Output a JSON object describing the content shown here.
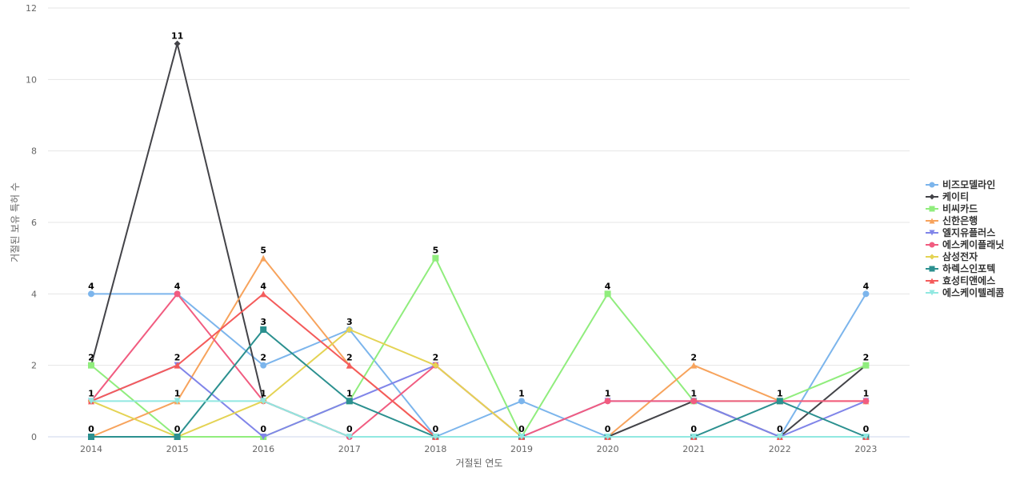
{
  "chart_data": {
    "type": "line",
    "xlabel": "거절된 연도",
    "ylabel": "거절된 보유 특허 수",
    "categories": [
      "2014",
      "2015",
      "2016",
      "2017",
      "2018",
      "2019",
      "2020",
      "2021",
      "2022",
      "2023"
    ],
    "ylim": [
      0,
      12
    ],
    "yticks": [
      0,
      2,
      4,
      6,
      8,
      10,
      12
    ],
    "grid": true,
    "legend_position": "right",
    "series": [
      {
        "name": "비즈모델라인",
        "color": "#7cb5ec",
        "marker": "circle",
        "values": [
          4,
          4,
          2,
          3,
          0,
          1,
          0,
          0,
          0,
          4
        ]
      },
      {
        "name": "케이티",
        "color": "#434348",
        "marker": "diamond",
        "values": [
          2,
          11,
          1,
          0,
          0,
          0,
          0,
          1,
          0,
          2
        ]
      },
      {
        "name": "비씨카드",
        "color": "#90ed7d",
        "marker": "square",
        "values": [
          2,
          0,
          0,
          1,
          5,
          0,
          4,
          1,
          1,
          2
        ]
      },
      {
        "name": "신한은행",
        "color": "#f7a35c",
        "marker": "triangle",
        "values": [
          0,
          1,
          5,
          2,
          0,
          0,
          0,
          2,
          1,
          1
        ]
      },
      {
        "name": "엘지유플러스",
        "color": "#8085e9",
        "marker": "triangle-down",
        "values": [
          1,
          2,
          0,
          1,
          2,
          0,
          1,
          1,
          0,
          1
        ]
      },
      {
        "name": "에스케이플래닛",
        "color": "#f15c80",
        "marker": "circle",
        "values": [
          1,
          4,
          1,
          0,
          2,
          0,
          1,
          1,
          1,
          1
        ]
      },
      {
        "name": "삼성전자",
        "color": "#e4d354",
        "marker": "diamond",
        "values": [
          1,
          0,
          1,
          3,
          2,
          0,
          0,
          0,
          0,
          0
        ]
      },
      {
        "name": "하렉스인포텍",
        "color": "#2b908f",
        "marker": "square",
        "values": [
          0,
          0,
          3,
          1,
          0,
          0,
          0,
          0,
          1,
          0
        ]
      },
      {
        "name": "효성티앤에스",
        "color": "#f45b5b",
        "marker": "triangle",
        "values": [
          1,
          2,
          4,
          2,
          0,
          0,
          0,
          0,
          0,
          0
        ]
      },
      {
        "name": "에스케이텔레콤",
        "color": "#91e8e1",
        "marker": "triangle-down",
        "values": [
          1,
          1,
          1,
          0,
          0,
          0,
          0,
          0,
          0,
          0
        ]
      }
    ],
    "data_labels": [
      {
        "x": "2014",
        "value": 4
      },
      {
        "x": "2014",
        "value": 2
      },
      {
        "x": "2014",
        "value": 1
      },
      {
        "x": "2014",
        "value": 0
      },
      {
        "x": "2015",
        "value": 11
      },
      {
        "x": "2015",
        "value": 4
      },
      {
        "x": "2015",
        "value": 2
      },
      {
        "x": "2015",
        "value": 1
      },
      {
        "x": "2015",
        "value": 0
      },
      {
        "x": "2016",
        "value": 5
      },
      {
        "x": "2016",
        "value": 4
      },
      {
        "x": "2016",
        "value": 3
      },
      {
        "x": "2016",
        "value": 2
      },
      {
        "x": "2016",
        "value": 1
      },
      {
        "x": "2016",
        "value": 0
      },
      {
        "x": "2017",
        "value": 3
      },
      {
        "x": "2017",
        "value": 2
      },
      {
        "x": "2017",
        "value": 1
      },
      {
        "x": "2017",
        "value": 0
      },
      {
        "x": "2018",
        "value": 5
      },
      {
        "x": "2018",
        "value": 2
      },
      {
        "x": "2018",
        "value": 0
      },
      {
        "x": "2019",
        "value": 1
      },
      {
        "x": "2019",
        "value": 0
      },
      {
        "x": "2020",
        "value": 4
      },
      {
        "x": "2020",
        "value": 1
      },
      {
        "x": "2020",
        "value": 0
      },
      {
        "x": "2021",
        "value": 2
      },
      {
        "x": "2021",
        "value": 1
      },
      {
        "x": "2021",
        "value": 0
      },
      {
        "x": "2022",
        "value": 1
      },
      {
        "x": "2022",
        "value": 0
      },
      {
        "x": "2023",
        "value": 4
      },
      {
        "x": "2023",
        "value": 2
      },
      {
        "x": "2023",
        "value": 1
      },
      {
        "x": "2023",
        "value": 0
      }
    ]
  }
}
